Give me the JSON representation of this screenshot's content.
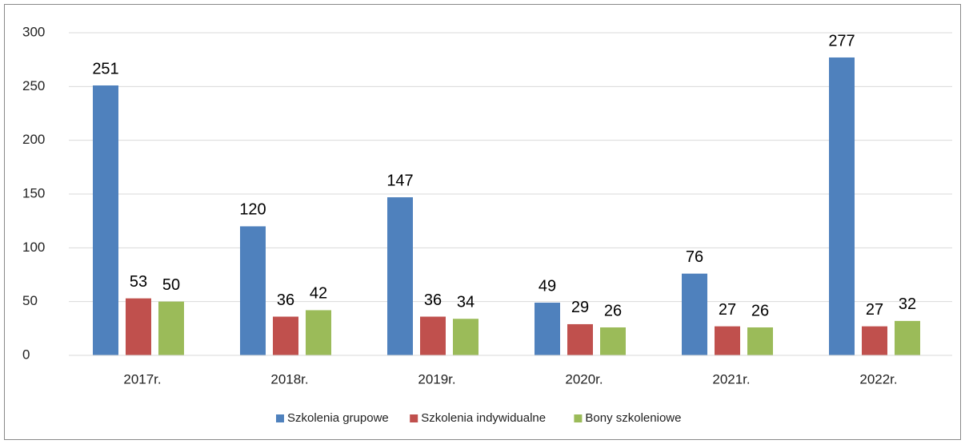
{
  "chart_data": {
    "type": "bar",
    "categories": [
      "2017r.",
      "2018r.",
      "2019r.",
      "2020r.",
      "2021r.",
      "2022r."
    ],
    "series": [
      {
        "name": "Szkolenia grupowe",
        "color": "#4f81bd",
        "values": [
          251,
          120,
          147,
          49,
          76,
          277
        ]
      },
      {
        "name": "Szkolenia indywidualne",
        "color": "#c0504d",
        "values": [
          53,
          36,
          36,
          29,
          27,
          27
        ]
      },
      {
        "name": "Bony szkoleniowe",
        "color": "#9bbb59",
        "values": [
          50,
          42,
          34,
          26,
          26,
          32
        ]
      }
    ],
    "ylim": [
      0,
      300
    ],
    "yticks": [
      0,
      50,
      100,
      150,
      200,
      250,
      300
    ],
    "grid": true,
    "legend": "bottom"
  }
}
